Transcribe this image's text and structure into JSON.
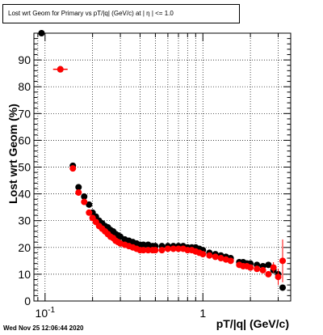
{
  "title": "Lost wrt Geom for Primary vs pT/|q| (GeV/c) at | η | <= 1.0",
  "timestamp": "Wed Nov 25 12:06:44 2020",
  "chart_data": {
    "type": "scatter",
    "title": "Lost wrt Geom for Primary vs pT/|q| (GeV/c) at | η | <= 1.0",
    "xlabel": "pT/|q| (GeV/c)",
    "ylabel": "Lost wrt Geom (%)",
    "x_scale": "log",
    "xlim": [
      0.085,
      3.6
    ],
    "ylim": [
      0,
      100
    ],
    "grid": true,
    "x_tick_labels": [
      {
        "value": 0.1,
        "label": "10",
        "exponent": "-1"
      },
      {
        "value": 1,
        "label": "1",
        "exponent": ""
      }
    ],
    "y_ticks": [
      0,
      10,
      20,
      30,
      40,
      50,
      60,
      70,
      80,
      90
    ],
    "series": [
      {
        "color": "#000000",
        "x": [
          0.095,
          0.125,
          0.15,
          0.163,
          0.177,
          0.19,
          0.2,
          0.21,
          0.22,
          0.23,
          0.24,
          0.25,
          0.26,
          0.27,
          0.28,
          0.29,
          0.3,
          0.32,
          0.34,
          0.36,
          0.38,
          0.4,
          0.42,
          0.45,
          0.48,
          0.5,
          0.55,
          0.6,
          0.65,
          0.7,
          0.75,
          0.8,
          0.85,
          0.9,
          0.95,
          1.0,
          1.1,
          1.2,
          1.3,
          1.4,
          1.5,
          1.7,
          1.8,
          1.9,
          2.0,
          2.2,
          2.4,
          2.6,
          2.8,
          3.0,
          3.2
        ],
        "y": [
          100,
          86.5,
          50.5,
          42.5,
          39,
          36,
          33,
          31.5,
          30,
          29,
          28,
          27.5,
          26.5,
          26,
          25,
          24.5,
          24,
          23,
          22.5,
          22,
          21.5,
          21,
          21,
          21,
          20.5,
          20.5,
          20.5,
          20.5,
          20.5,
          20.5,
          20.5,
          20,
          20,
          20,
          19.5,
          19,
          18,
          17.5,
          17,
          16.5,
          16,
          14.5,
          14.5,
          14,
          14,
          13.5,
          13,
          13.5,
          11.5,
          10,
          5
        ]
      },
      {
        "color": "#ff0000",
        "x": [
          0.125,
          0.15,
          0.163,
          0.177,
          0.19,
          0.2,
          0.21,
          0.22,
          0.23,
          0.24,
          0.25,
          0.26,
          0.27,
          0.28,
          0.29,
          0.3,
          0.32,
          0.34,
          0.36,
          0.38,
          0.4,
          0.42,
          0.45,
          0.48,
          0.5,
          0.55,
          0.6,
          0.65,
          0.7,
          0.75,
          0.8,
          0.85,
          0.9,
          0.95,
          1.0,
          1.1,
          1.2,
          1.3,
          1.4,
          1.5,
          1.7,
          1.8,
          1.9,
          2.0,
          2.2,
          2.4,
          2.6,
          2.8,
          3.0,
          3.2
        ],
        "y": [
          86.5,
          49.5,
          40.5,
          37,
          33,
          31,
          29.5,
          28,
          27,
          26,
          25,
          24,
          23.5,
          22.5,
          22,
          21.5,
          21,
          20.5,
          20,
          19.5,
          19,
          19,
          19,
          19,
          19,
          19,
          19.5,
          19.5,
          19.5,
          19.5,
          19,
          19,
          18.5,
          18,
          17.5,
          17,
          16.5,
          16,
          15.5,
          15,
          13.5,
          13,
          13,
          12.5,
          12,
          11.5,
          10,
          12.5,
          9,
          15
        ],
        "yerr_hi": [
          0,
          0,
          0,
          0,
          0,
          0,
          0,
          0,
          0,
          0,
          0,
          0,
          0,
          0,
          0,
          0,
          0,
          0,
          0,
          0,
          0,
          0,
          0,
          0,
          0,
          0,
          0,
          0,
          0,
          0,
          0,
          0,
          0,
          0,
          0,
          0,
          0,
          0,
          0,
          0,
          0,
          0,
          0,
          0,
          0,
          0,
          0,
          2,
          3,
          8
        ]
      }
    ]
  }
}
